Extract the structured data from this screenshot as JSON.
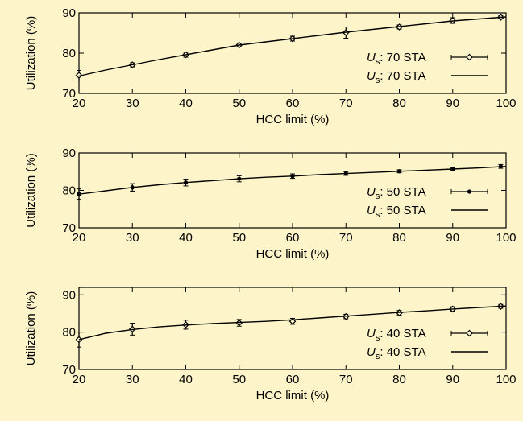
{
  "background": "#fdf5c9",
  "chart_data": [
    {
      "type": "line",
      "xlabel": "HCC limit (%)",
      "ylabel": "Utilization (%)",
      "xlim": [
        20,
        100
      ],
      "ylim": [
        70,
        90
      ],
      "xticks": [
        "20",
        "30",
        "40",
        "50",
        "60",
        "70",
        "80",
        "90",
        "100"
      ],
      "yticks": [
        "70",
        "80",
        "90"
      ],
      "grid": false,
      "legend_position": "lower-right",
      "series": [
        {
          "name_symbol": "U",
          "name_sub": "s",
          "name_rest": ": 70 STA",
          "style": "errorbar-diamond",
          "x": [
            20,
            30,
            40,
            50,
            60,
            70,
            80,
            90,
            99
          ],
          "values": [
            74.5,
            77.1,
            79.6,
            82.0,
            83.6,
            85.1,
            86.5,
            88.1,
            88.9
          ],
          "err": [
            1.2,
            0.5,
            0.6,
            0.5,
            0.6,
            1.4,
            0.5,
            0.7,
            0.4
          ]
        },
        {
          "name_symbol": "U",
          "name_sub": "s",
          "name_rest": ": 70 STA",
          "style": "line",
          "x": [
            20,
            25,
            30,
            35,
            40,
            45,
            50,
            55,
            60,
            65,
            70,
            75,
            80,
            85,
            90,
            95,
            100
          ],
          "values": [
            74.3,
            75.8,
            77.1,
            78.4,
            79.6,
            80.8,
            82.0,
            82.8,
            83.6,
            84.4,
            85.2,
            85.9,
            86.6,
            87.3,
            88.0,
            88.5,
            89.0
          ]
        }
      ]
    },
    {
      "type": "line",
      "xlabel": "HCC limit (%)",
      "ylabel": "Utilization (%)",
      "xlim": [
        20,
        100
      ],
      "ylim": [
        70,
        90
      ],
      "xticks": [
        "20",
        "30",
        "40",
        "50",
        "60",
        "70",
        "80",
        "90",
        "100"
      ],
      "yticks": [
        "70",
        "80",
        "90"
      ],
      "grid": false,
      "legend_position": "lower-right",
      "series": [
        {
          "name_symbol": "U",
          "name_sub": "s",
          "name_rest": ": 50 STA",
          "style": "errorbar-dot",
          "x": [
            20,
            30,
            40,
            50,
            60,
            70,
            80,
            90,
            99
          ],
          "values": [
            79.0,
            80.8,
            82.1,
            83.1,
            83.8,
            84.5,
            85.1,
            85.7,
            86.4
          ],
          "err": [
            1.4,
            1.0,
            0.9,
            0.8,
            0.6,
            0.5,
            0.4,
            0.4,
            0.5
          ]
        },
        {
          "name_symbol": "U",
          "name_sub": "s",
          "name_rest": ": 50 STA",
          "style": "line",
          "x": [
            20,
            25,
            30,
            35,
            40,
            45,
            50,
            55,
            60,
            65,
            70,
            75,
            80,
            85,
            90,
            95,
            100
          ],
          "values": [
            79.0,
            79.9,
            80.8,
            81.5,
            82.1,
            82.6,
            83.1,
            83.5,
            83.8,
            84.2,
            84.5,
            84.8,
            85.1,
            85.4,
            85.7,
            86.0,
            86.4
          ]
        }
      ]
    },
    {
      "type": "line",
      "xlabel": "HCC limit (%)",
      "ylabel": "Utilization (%)",
      "xlim": [
        20,
        100
      ],
      "ylim": [
        70,
        92
      ],
      "xticks": [
        "20",
        "30",
        "40",
        "50",
        "60",
        "70",
        "80",
        "90",
        "100"
      ],
      "yticks": [
        "70",
        "80",
        "90"
      ],
      "grid": false,
      "legend_position": "lower-right",
      "series": [
        {
          "name_symbol": "U",
          "name_sub": "s",
          "name_rest": ": 40 STA",
          "style": "errorbar-diamond",
          "x": [
            20,
            30,
            40,
            50,
            60,
            70,
            80,
            90,
            99
          ],
          "values": [
            78.0,
            80.8,
            82.0,
            82.5,
            82.9,
            84.2,
            85.2,
            86.2,
            86.9
          ],
          "err": [
            2.0,
            1.6,
            1.2,
            0.9,
            0.8,
            0.6,
            0.6,
            0.6,
            0.5
          ]
        },
        {
          "name_symbol": "U",
          "name_sub": "s",
          "name_rest": ": 40 STA",
          "style": "line",
          "x": [
            20,
            25,
            30,
            35,
            40,
            45,
            50,
            55,
            60,
            65,
            70,
            75,
            80,
            85,
            90,
            95,
            100
          ],
          "values": [
            78.0,
            79.7,
            80.7,
            81.4,
            81.9,
            82.3,
            82.6,
            82.9,
            83.3,
            83.8,
            84.3,
            84.8,
            85.3,
            85.7,
            86.2,
            86.6,
            87.0
          ]
        }
      ]
    }
  ]
}
